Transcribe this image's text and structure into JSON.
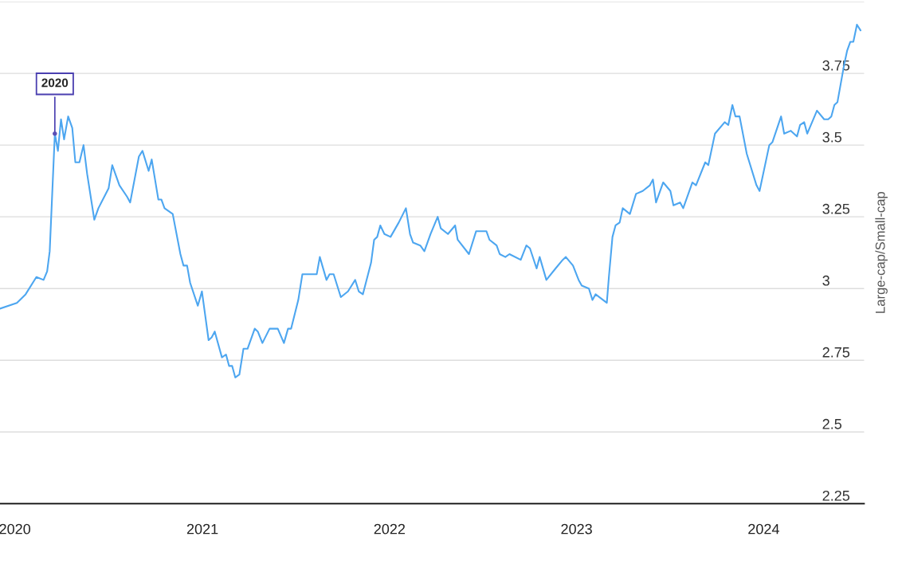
{
  "chart_data": {
    "type": "line",
    "ylabel": "Large-cap/Small-cap",
    "x": [
      "2019-12-03",
      "2020-01-05",
      "2020-01-22",
      "2020-02-12",
      "2020-02-26",
      "2020-03-04",
      "2020-03-09",
      "2020-03-19",
      "2020-03-25",
      "2020-03-31",
      "2020-04-06",
      "2020-04-14",
      "2020-04-22",
      "2020-04-28",
      "2020-05-06",
      "2020-05-14",
      "2020-05-21",
      "2020-06-04",
      "2020-06-12",
      "2020-07-02",
      "2020-07-09",
      "2020-07-23",
      "2020-08-07",
      "2020-08-13",
      "2020-08-30",
      "2020-09-06",
      "2020-09-18",
      "2020-09-24",
      "2020-10-07",
      "2020-10-13",
      "2020-10-19",
      "2020-11-04",
      "2020-11-19",
      "2020-11-25",
      "2020-12-02",
      "2020-12-08",
      "2020-12-23",
      "2020-12-31",
      "2021-01-13",
      "2021-01-19",
      "2021-01-25",
      "2021-02-08",
      "2021-02-16",
      "2021-02-22",
      "2021-02-28",
      "2021-03-06",
      "2021-03-14",
      "2021-03-22",
      "2021-03-30",
      "2021-04-13",
      "2021-04-19",
      "2021-04-28",
      "2021-05-12",
      "2021-05-28",
      "2021-06-09",
      "2021-06-17",
      "2021-06-23",
      "2021-07-07",
      "2021-07-15",
      "2021-07-27",
      "2021-08-12",
      "2021-08-18",
      "2021-08-31",
      "2021-09-06",
      "2021-09-14",
      "2021-09-28",
      "2021-10-12",
      "2021-10-26",
      "2021-11-02",
      "2021-11-10",
      "2021-11-26",
      "2021-12-02",
      "2021-12-08",
      "2021-12-14",
      "2021-12-22",
      "2022-01-03",
      "2022-01-19",
      "2022-02-02",
      "2022-02-10",
      "2022-02-16",
      "2022-03-02",
      "2022-03-10",
      "2022-03-22",
      "2022-04-05",
      "2022-04-11",
      "2022-04-25",
      "2022-05-09",
      "2022-05-14",
      "2022-06-05",
      "2022-06-19",
      "2022-07-01",
      "2022-07-09",
      "2022-07-15",
      "2022-07-29",
      "2022-08-04",
      "2022-08-15",
      "2022-08-23",
      "2022-09-14",
      "2022-09-25",
      "2022-10-02",
      "2022-10-15",
      "2022-10-21",
      "2022-11-03",
      "2022-11-21",
      "2022-12-05",
      "2022-12-11",
      "2022-12-25",
      "2023-01-05",
      "2023-01-11",
      "2023-01-25",
      "2023-02-01",
      "2023-02-07",
      "2023-03-01",
      "2023-03-05",
      "2023-03-12",
      "2023-03-18",
      "2023-03-26",
      "2023-04-01",
      "2023-04-15",
      "2023-04-27",
      "2023-05-10",
      "2023-05-24",
      "2023-05-30",
      "2023-06-05",
      "2023-06-19",
      "2023-07-03",
      "2023-07-09",
      "2023-07-22",
      "2023-07-28",
      "2023-08-15",
      "2023-08-22",
      "2023-09-09",
      "2023-09-15",
      "2023-09-28",
      "2023-10-17",
      "2023-10-24",
      "2023-11-01",
      "2023-11-07",
      "2023-11-15",
      "2023-11-29",
      "2023-12-18",
      "2023-12-24",
      "2024-01-12",
      "2024-01-18",
      "2024-02-04",
      "2024-02-10",
      "2024-02-23",
      "2024-03-06",
      "2024-03-12",
      "2024-03-20",
      "2024-03-26",
      "2024-04-14",
      "2024-04-28",
      "2024-05-06",
      "2024-05-12",
      "2024-05-18",
      "2024-05-24",
      "2024-06-06",
      "2024-06-12",
      "2024-06-18",
      "2024-06-24",
      "2024-07-01",
      "2024-07-08"
    ],
    "series": [
      {
        "color": "#4da6f0",
        "values": [
          2.93,
          2.95,
          2.98,
          3.04,
          3.03,
          3.06,
          3.13,
          3.54,
          3.48,
          3.59,
          3.52,
          3.6,
          3.56,
          3.44,
          3.44,
          3.5,
          3.4,
          3.24,
          3.28,
          3.35,
          3.43,
          3.36,
          3.32,
          3.3,
          3.46,
          3.48,
          3.41,
          3.45,
          3.31,
          3.31,
          3.28,
          3.26,
          3.12,
          3.08,
          3.08,
          3.02,
          2.94,
          2.99,
          2.82,
          2.83,
          2.85,
          2.76,
          2.77,
          2.73,
          2.73,
          2.69,
          2.7,
          2.79,
          2.79,
          2.86,
          2.85,
          2.81,
          2.86,
          2.86,
          2.81,
          2.86,
          2.86,
          2.96,
          3.05,
          3.05,
          3.05,
          3.11,
          3.03,
          3.05,
          3.05,
          2.97,
          2.99,
          3.03,
          2.99,
          2.98,
          3.09,
          3.17,
          3.18,
          3.22,
          3.19,
          3.18,
          3.23,
          3.28,
          3.19,
          3.16,
          3.15,
          3.13,
          3.19,
          3.25,
          3.21,
          3.19,
          3.22,
          3.17,
          3.12,
          3.2,
          3.2,
          3.2,
          3.17,
          3.15,
          3.12,
          3.11,
          3.12,
          3.1,
          3.15,
          3.14,
          3.07,
          3.11,
          3.03,
          3.07,
          3.1,
          3.11,
          3.08,
          3.03,
          3.01,
          3.0,
          2.96,
          2.98,
          2.95,
          3.04,
          3.18,
          3.22,
          3.23,
          3.28,
          3.26,
          3.33,
          3.34,
          3.36,
          3.38,
          3.3,
          3.37,
          3.34,
          3.29,
          3.3,
          3.28,
          3.37,
          3.36,
          3.44,
          3.43,
          3.54,
          3.58,
          3.57,
          3.64,
          3.6,
          3.6,
          3.47,
          3.36,
          3.34,
          3.5,
          3.51,
          3.6,
          3.54,
          3.55,
          3.53,
          3.57,
          3.58,
          3.54,
          3.62,
          3.59,
          3.59,
          3.6,
          3.64,
          3.65,
          3.78,
          3.83,
          3.86,
          3.86,
          3.92,
          3.9
        ]
      }
    ],
    "xlim": [
      "2019-12-03",
      "2024-07-15"
    ],
    "xticks": [
      "2020",
      "2021",
      "2022",
      "2023",
      "2024"
    ],
    "ylim": [
      2.25,
      4.0
    ],
    "yticks": [
      2.25,
      2.5,
      2.75,
      3,
      3.25,
      3.5,
      3.75,
      {
        "value": 4,
        "label": null
      }
    ],
    "grid": "y",
    "marker": "none",
    "line_style": "solid",
    "annotations": [
      {
        "text": "2020",
        "x": "2020-03-19",
        "y": 3.54
      }
    ]
  }
}
